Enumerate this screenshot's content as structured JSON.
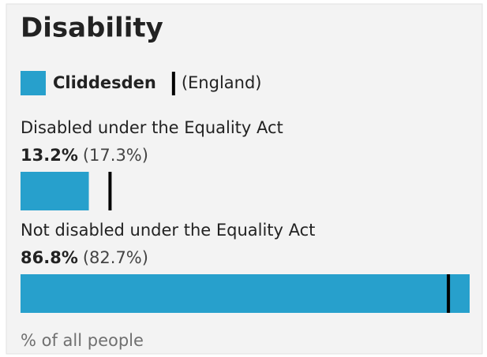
{
  "chart_data": {
    "type": "bar",
    "orientation": "horizontal",
    "title": "Disability",
    "categories": [
      "Disabled under the Equality Act",
      "Not disabled under the Equality Act"
    ],
    "series": [
      {
        "name": "Cliddesden",
        "color": "#27a0cc",
        "values": [
          13.2,
          86.8
        ],
        "value_labels": [
          "13.2%",
          "86.8%"
        ]
      },
      {
        "name": "(England)",
        "color": "#000000",
        "values": [
          17.3,
          82.7
        ],
        "value_labels": [
          "(17.3%)",
          "(82.7%)"
        ]
      }
    ],
    "xlabel": "% of all people",
    "xlim": [
      0,
      86.8
    ]
  }
}
